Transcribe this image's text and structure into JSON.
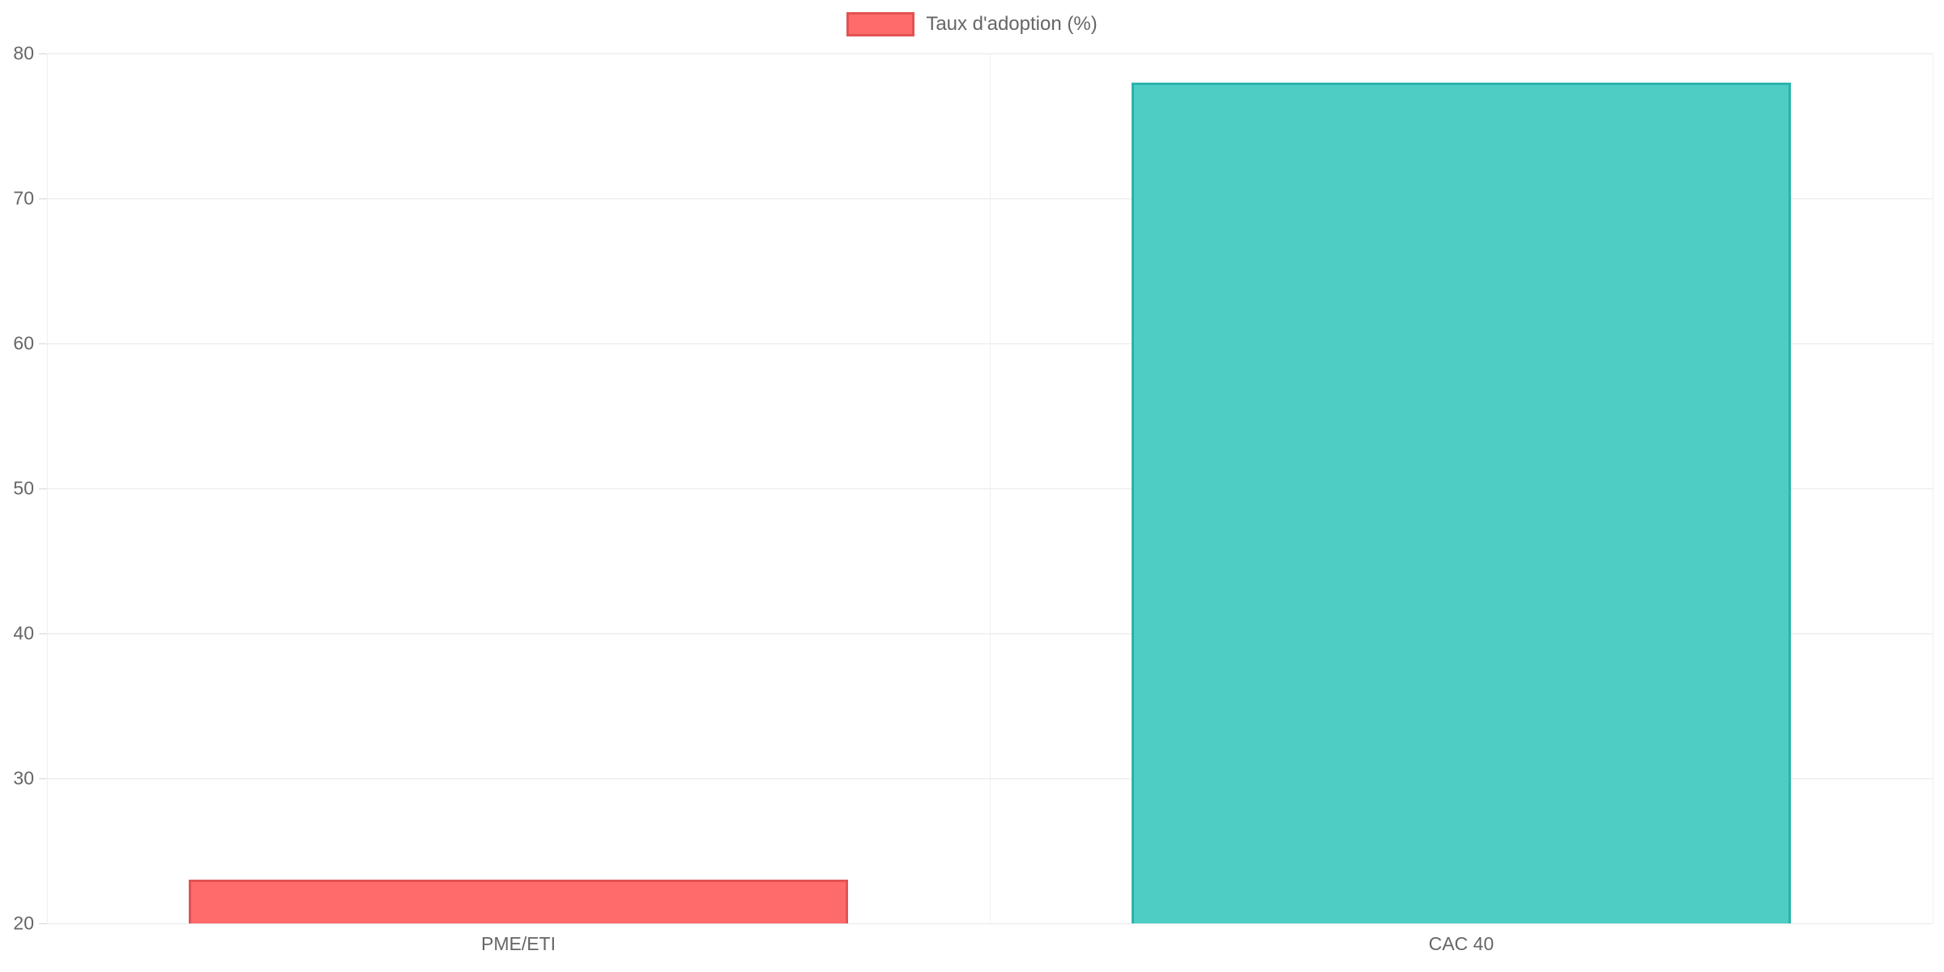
{
  "chart_data": {
    "type": "bar",
    "title": "",
    "xlabel": "",
    "ylabel": "",
    "categories": [
      "PME/ETI",
      "CAC 40"
    ],
    "series": [
      {
        "name": "Taux d'adoption (%)",
        "values": [
          23,
          78
        ],
        "fill_colors": [
          "#ff6b6b",
          "#4ecdc4"
        ],
        "border_colors": [
          "#e35252",
          "#2bb3ab"
        ]
      }
    ],
    "ylim": [
      20,
      80
    ],
    "yticks": [
      20,
      30,
      40,
      50,
      60,
      70,
      80
    ],
    "grid": true,
    "legend_position": "top"
  },
  "legend": {
    "label": "Taux d'adoption (%)",
    "swatch_fill": "#ff6b6b",
    "swatch_border": "#e35252"
  },
  "colors": {
    "grid_horizontal": "#e8e8e8",
    "grid_vertical": "#f0f0f0",
    "axis_text": "#666666",
    "background": "#ffffff"
  }
}
